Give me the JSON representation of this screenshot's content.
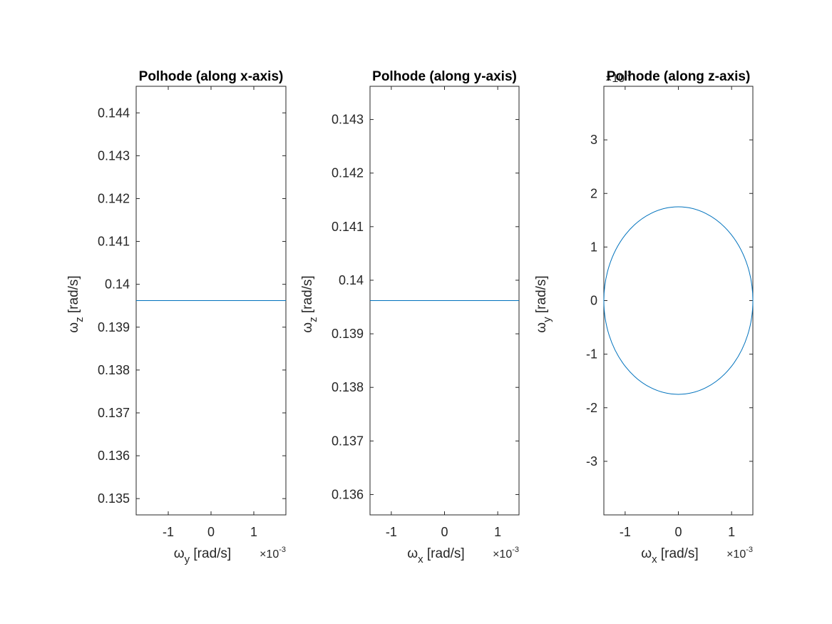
{
  "chart_data": [
    {
      "type": "line",
      "title": "Polhode (along x-axis)",
      "xlabel": {
        "symbol": "ω",
        "sub": "y",
        "unit": " [rad/s]"
      },
      "ylabel": {
        "symbol": "ω",
        "sub": "z",
        "unit": " [rad/s]"
      },
      "x_exponent": {
        "base": "×10",
        "power": "-3"
      },
      "xlim": [
        -1.75,
        1.75
      ],
      "ylim": [
        0.13462,
        0.14462
      ],
      "xticks": [
        -1,
        0,
        1
      ],
      "xtick_labels": [
        "-1",
        "0",
        "1"
      ],
      "yticks": [
        0.135,
        0.136,
        0.137,
        0.138,
        0.139,
        0.14,
        0.141,
        0.142,
        0.143,
        0.144
      ],
      "ytick_labels": [
        "0.135",
        "0.136",
        "0.137",
        "0.138",
        "0.139",
        "0.14",
        "0.141",
        "0.142",
        "0.143",
        "0.144"
      ],
      "series": [
        {
          "x": [
            -1.75,
            -1.0,
            -0.5,
            0,
            0.5,
            1.0,
            1.75
          ],
          "y": [
            0.13962,
            0.13962,
            0.13962,
            0.13962,
            0.13962,
            0.13962,
            0.13962
          ]
        }
      ]
    },
    {
      "type": "line",
      "title": "Polhode (along y-axis)",
      "xlabel": {
        "symbol": "ω",
        "sub": "x",
        "unit": " [rad/s]"
      },
      "ylabel": {
        "symbol": "ω",
        "sub": "z",
        "unit": " [rad/s]"
      },
      "x_exponent": {
        "base": "×10",
        "power": "-3"
      },
      "xlim": [
        -1.4,
        1.4
      ],
      "ylim": [
        0.13562,
        0.14362
      ],
      "xticks": [
        -1,
        0,
        1
      ],
      "xtick_labels": [
        "-1",
        "0",
        "1"
      ],
      "yticks": [
        0.136,
        0.137,
        0.138,
        0.139,
        0.14,
        0.141,
        0.142,
        0.143
      ],
      "ytick_labels": [
        "0.136",
        "0.137",
        "0.138",
        "0.139",
        "0.14",
        "0.141",
        "0.142",
        "0.143"
      ],
      "series": [
        {
          "x": [
            -1.4,
            -1.0,
            -0.5,
            0,
            0.5,
            1.0,
            1.4
          ],
          "y": [
            0.13962,
            0.13962,
            0.13962,
            0.13962,
            0.13962,
            0.13962,
            0.13962
          ]
        }
      ]
    },
    {
      "type": "line",
      "title": "Polhode (along z-axis)",
      "xlabel": {
        "symbol": "ω",
        "sub": "x",
        "unit": " [rad/s]"
      },
      "ylabel": {
        "symbol": "ω",
        "sub": "y",
        "unit": " [rad/s]"
      },
      "x_exponent": {
        "base": "×10",
        "power": "-3"
      },
      "y_exponent": {
        "base": "×10",
        "power": "-3"
      },
      "xlim": [
        -1.4,
        1.4
      ],
      "ylim": [
        -4,
        4
      ],
      "xticks": [
        -1,
        0,
        1
      ],
      "xtick_labels": [
        "-1",
        "0",
        "1"
      ],
      "yticks": [
        -3,
        -2,
        -1,
        0,
        1,
        2,
        3
      ],
      "ytick_labels": [
        "-3",
        "-2",
        "-1",
        "0",
        "1",
        "2",
        "3"
      ],
      "ellipse": {
        "cx": 0,
        "cy": 0,
        "rx": 1.4,
        "ry": 1.75
      }
    }
  ],
  "colors": {
    "series": "#0072BD",
    "axes": "#262626"
  }
}
